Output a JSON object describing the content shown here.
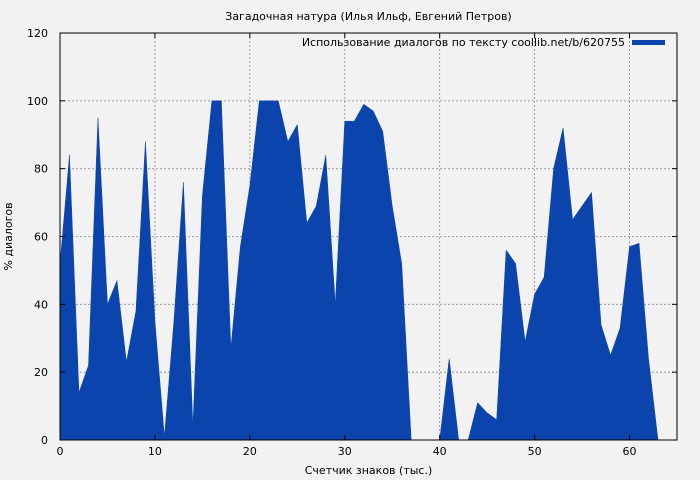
{
  "chart_data": {
    "type": "area",
    "title": "Загадочная натура (Илья Ильф, Евгений Петров)",
    "xlabel": "Счетчик знаков (тыс.)",
    "ylabel": "% диалогов",
    "xlim": [
      0,
      65
    ],
    "ylim": [
      0,
      120
    ],
    "x_ticks": [
      0,
      10,
      20,
      30,
      40,
      50,
      60
    ],
    "y_ticks": [
      0,
      20,
      40,
      60,
      80,
      100,
      120
    ],
    "grid": true,
    "legend_position": "top-right",
    "color": "#0b44ac",
    "series": [
      {
        "name": "Использование диалогов по тексту coollib.net/b/620755",
        "x": [
          0,
          1,
          2,
          3,
          4,
          5,
          6,
          7,
          8,
          9,
          10,
          11,
          12,
          13,
          14,
          15,
          16,
          17,
          18,
          19,
          20,
          21,
          22,
          23,
          24,
          25,
          26,
          27,
          28,
          29,
          30,
          31,
          32,
          33,
          34,
          35,
          36,
          37,
          38,
          39,
          40,
          41,
          42,
          43,
          44,
          45,
          46,
          47,
          48,
          49,
          50,
          51,
          52,
          53,
          54,
          55,
          56,
          57,
          58,
          59,
          60,
          61,
          62,
          63
        ],
        "y": [
          52,
          84,
          14,
          22,
          95,
          40,
          47,
          23,
          38,
          88,
          35,
          1,
          35,
          76,
          4,
          72,
          100,
          100,
          27,
          57,
          75,
          100,
          100,
          100,
          88,
          93,
          64,
          69,
          84,
          40,
          94,
          94,
          99,
          97,
          91,
          69,
          52,
          0,
          0,
          0,
          0,
          24,
          0,
          0,
          11,
          8,
          6,
          56,
          52,
          29,
          43,
          48,
          80,
          92,
          65,
          69,
          73,
          34,
          25,
          33,
          57,
          58,
          24,
          0
        ]
      }
    ]
  }
}
